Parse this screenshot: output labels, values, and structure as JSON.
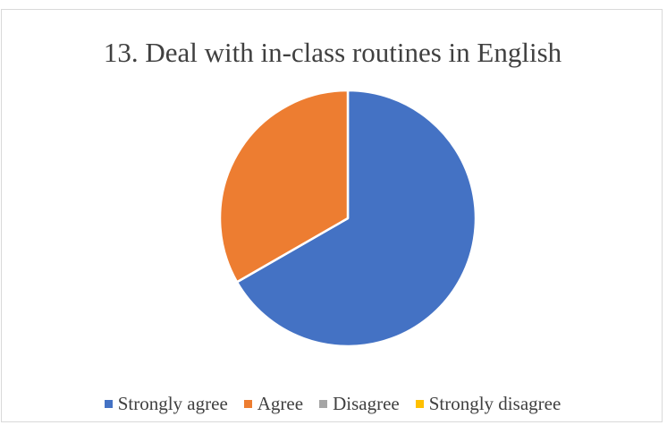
{
  "chart_data": {
    "type": "pie",
    "title": "13. Deal with in-class routines in English",
    "categories": [
      "Strongly agree",
      "Agree",
      "Disagree",
      "Strongly disagree"
    ],
    "values": [
      66.7,
      33.3,
      0,
      0
    ],
    "colors": [
      "#4472C4",
      "#ED7D31",
      "#A5A5A5",
      "#FFC000"
    ],
    "legend_position": "bottom",
    "start_angle_deg": 0,
    "direction": "clockwise"
  }
}
